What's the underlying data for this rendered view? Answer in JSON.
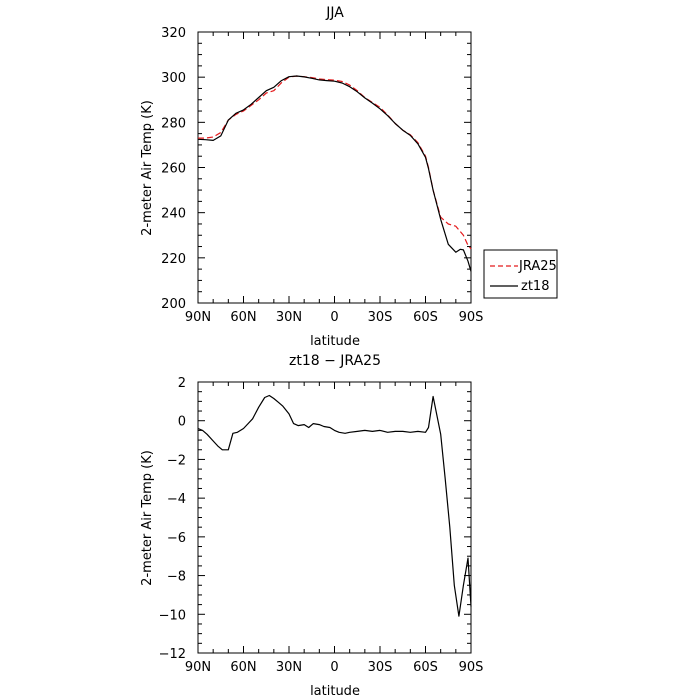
{
  "chart_data": [
    {
      "type": "line",
      "title": "JJA",
      "xlabel": "latitude",
      "ylabel": "2-meter Air Temp (K)",
      "xlim": [
        90,
        -90
      ],
      "ylim": [
        200,
        320
      ],
      "x_ticks": [
        90,
        60,
        30,
        0,
        -30,
        -60,
        -90
      ],
      "x_tick_labels": [
        "90N",
        "60N",
        "30N",
        "0",
        "30S",
        "60S",
        "90S"
      ],
      "y_ticks": [
        200,
        220,
        240,
        260,
        280,
        300,
        320
      ],
      "y_tick_labels": [
        "200",
        "220",
        "240",
        "260",
        "280",
        "300",
        "320"
      ],
      "grid": false,
      "legend": "right-outside",
      "series": [
        {
          "name": "JRA25",
          "color": "#e41a1c",
          "dash": "dashed",
          "x": [
            90,
            85,
            80,
            75,
            70,
            65,
            60,
            55,
            50,
            45,
            40,
            35,
            30,
            25,
            20,
            15,
            10,
            5,
            0,
            -5,
            -10,
            -15,
            -20,
            -25,
            -30,
            -35,
            -40,
            -45,
            -50,
            -55,
            -60,
            -62,
            -65,
            -70,
            -75,
            -80,
            -85,
            -88,
            -90
          ],
          "y": [
            273,
            273,
            273.5,
            275.5,
            281,
            283.5,
            285,
            287.5,
            290,
            293,
            294,
            297.5,
            300,
            300.5,
            300.2,
            299.8,
            299.2,
            298.9,
            298.7,
            298.1,
            296.5,
            294,
            291,
            288.8,
            286.6,
            283.3,
            279.5,
            276.5,
            274.5,
            271,
            265,
            260,
            250,
            238,
            235,
            234,
            230,
            225.5,
            224
          ]
        },
        {
          "name": "zt18",
          "color": "#000000",
          "dash": "solid",
          "x": [
            90,
            85,
            80,
            75,
            70,
            65,
            60,
            55,
            50,
            45,
            40,
            35,
            30,
            25,
            20,
            15,
            10,
            5,
            0,
            -5,
            -10,
            -15,
            -20,
            -25,
            -30,
            -35,
            -40,
            -45,
            -50,
            -55,
            -60,
            -62,
            -65,
            -70,
            -75,
            -80,
            -83,
            -85,
            -88,
            -90
          ],
          "y": [
            272.5,
            272.3,
            272,
            274,
            281,
            284,
            285.5,
            288,
            291,
            294,
            295.5,
            298.5,
            300.2,
            300.5,
            300.1,
            299.5,
            298.8,
            298.5,
            298.2,
            297.4,
            295.8,
            293.5,
            290.8,
            288.5,
            286,
            283,
            279.5,
            276.5,
            274.2,
            270.5,
            264.5,
            259.5,
            250,
            237,
            226,
            222.5,
            223.8,
            223.5,
            218.5,
            214
          ]
        }
      ]
    },
    {
      "type": "line",
      "title": "zt18 − JRA25",
      "xlabel": "latitude",
      "ylabel": "2-meter Air Temp (K)",
      "xlim": [
        90,
        -90
      ],
      "ylim": [
        -12,
        2
      ],
      "x_ticks": [
        90,
        60,
        30,
        0,
        -30,
        -60,
        -90
      ],
      "x_tick_labels": [
        "90N",
        "60N",
        "30N",
        "0",
        "30S",
        "60S",
        "90S"
      ],
      "y_ticks": [
        -12,
        -10,
        -8,
        -6,
        -4,
        -2,
        0,
        2
      ],
      "y_tick_labels": [
        "−12",
        "−10",
        "−8",
        "−6",
        "−4",
        "−2",
        "0",
        "2"
      ],
      "grid": false,
      "series": [
        {
          "color": "#000000",
          "dash": "solid",
          "x": [
            90,
            87,
            84,
            80,
            77,
            74,
            70,
            67,
            64,
            60,
            57,
            54,
            50,
            46,
            43,
            40,
            37,
            34,
            30,
            27,
            24,
            20,
            17,
            14,
            10,
            7,
            3,
            0,
            -3,
            -7,
            -10,
            -15,
            -20,
            -25,
            -30,
            -35,
            -40,
            -45,
            -50,
            -55,
            -60,
            -62,
            -65,
            -70,
            -73,
            -76,
            -79,
            -82,
            -85,
            -88,
            -90
          ],
          "y": [
            -0.4,
            -0.5,
            -0.7,
            -1.05,
            -1.3,
            -1.5,
            -1.5,
            -0.65,
            -0.6,
            -0.4,
            -0.15,
            0.1,
            0.7,
            1.2,
            1.3,
            1.15,
            0.95,
            0.75,
            0.35,
            -0.15,
            -0.25,
            -0.2,
            -0.35,
            -0.15,
            -0.2,
            -0.3,
            -0.35,
            -0.5,
            -0.6,
            -0.65,
            -0.6,
            -0.55,
            -0.5,
            -0.55,
            -0.5,
            -0.6,
            -0.55,
            -0.55,
            -0.6,
            -0.55,
            -0.6,
            -0.35,
            1.25,
            -0.7,
            -3,
            -5.5,
            -8.5,
            -10.1,
            -8.5,
            -7.1,
            -9.6
          ]
        }
      ]
    }
  ]
}
